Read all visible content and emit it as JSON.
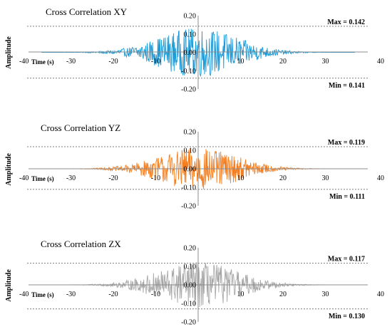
{
  "chart_data": [
    {
      "type": "line",
      "title": "Cross Correlation XY",
      "xlabel": "Time (s)",
      "ylabel": "Amplitude",
      "xlim": [
        -40,
        40
      ],
      "ylim": [
        -0.2,
        0.2
      ],
      "x_ticks": [
        "-40",
        "-30",
        "-20",
        "-10",
        "0",
        "10",
        "20",
        "30",
        "40"
      ],
      "y_ticks": [
        "0.20",
        "0.10",
        "0.00",
        "-0.10",
        "-0.20"
      ],
      "max_label": "Max = 0.142",
      "min_label": "Min = 0.141",
      "max": 0.142,
      "min": -0.141,
      "signal_extent": [
        -37,
        37
      ],
      "series_color": "#1e9ad6"
    },
    {
      "type": "line",
      "title": "Cross Correlation YZ",
      "xlabel": "Time (s)",
      "ylabel": "Amplitude",
      "xlim": [
        -40,
        40
      ],
      "ylim": [
        -0.2,
        0.2
      ],
      "x_ticks": [
        "-40",
        "-30",
        "-20",
        "-10",
        "0",
        "10",
        "20",
        "30",
        "40"
      ],
      "y_ticks": [
        "0.20",
        "0.10",
        "0.00",
        "-0.10",
        "-0.20"
      ],
      "max_label": "Max = 0.119",
      "min_label": "Min = 0.111",
      "max": 0.119,
      "min": -0.111,
      "signal_extent": [
        -37,
        37
      ],
      "series_color": "#f57f20"
    },
    {
      "type": "line",
      "title": "Cross Correlation ZX",
      "xlabel": "Time (s)",
      "ylabel": "Amplitude",
      "xlim": [
        -40,
        40
      ],
      "ylim": [
        -0.2,
        0.2
      ],
      "x_ticks": [
        "-40",
        "-30",
        "-20",
        "-10",
        "0",
        "10",
        "20",
        "30",
        "40"
      ],
      "y_ticks": [
        "0.20",
        "0.10",
        "0.00",
        "-0.10",
        "-0.20"
      ],
      "max_label": "Max = 0.117",
      "min_label": "Min = 0.130",
      "max": 0.117,
      "min": -0.13,
      "signal_extent": [
        -37,
        37
      ],
      "series_color": "#a6a6a6"
    }
  ]
}
